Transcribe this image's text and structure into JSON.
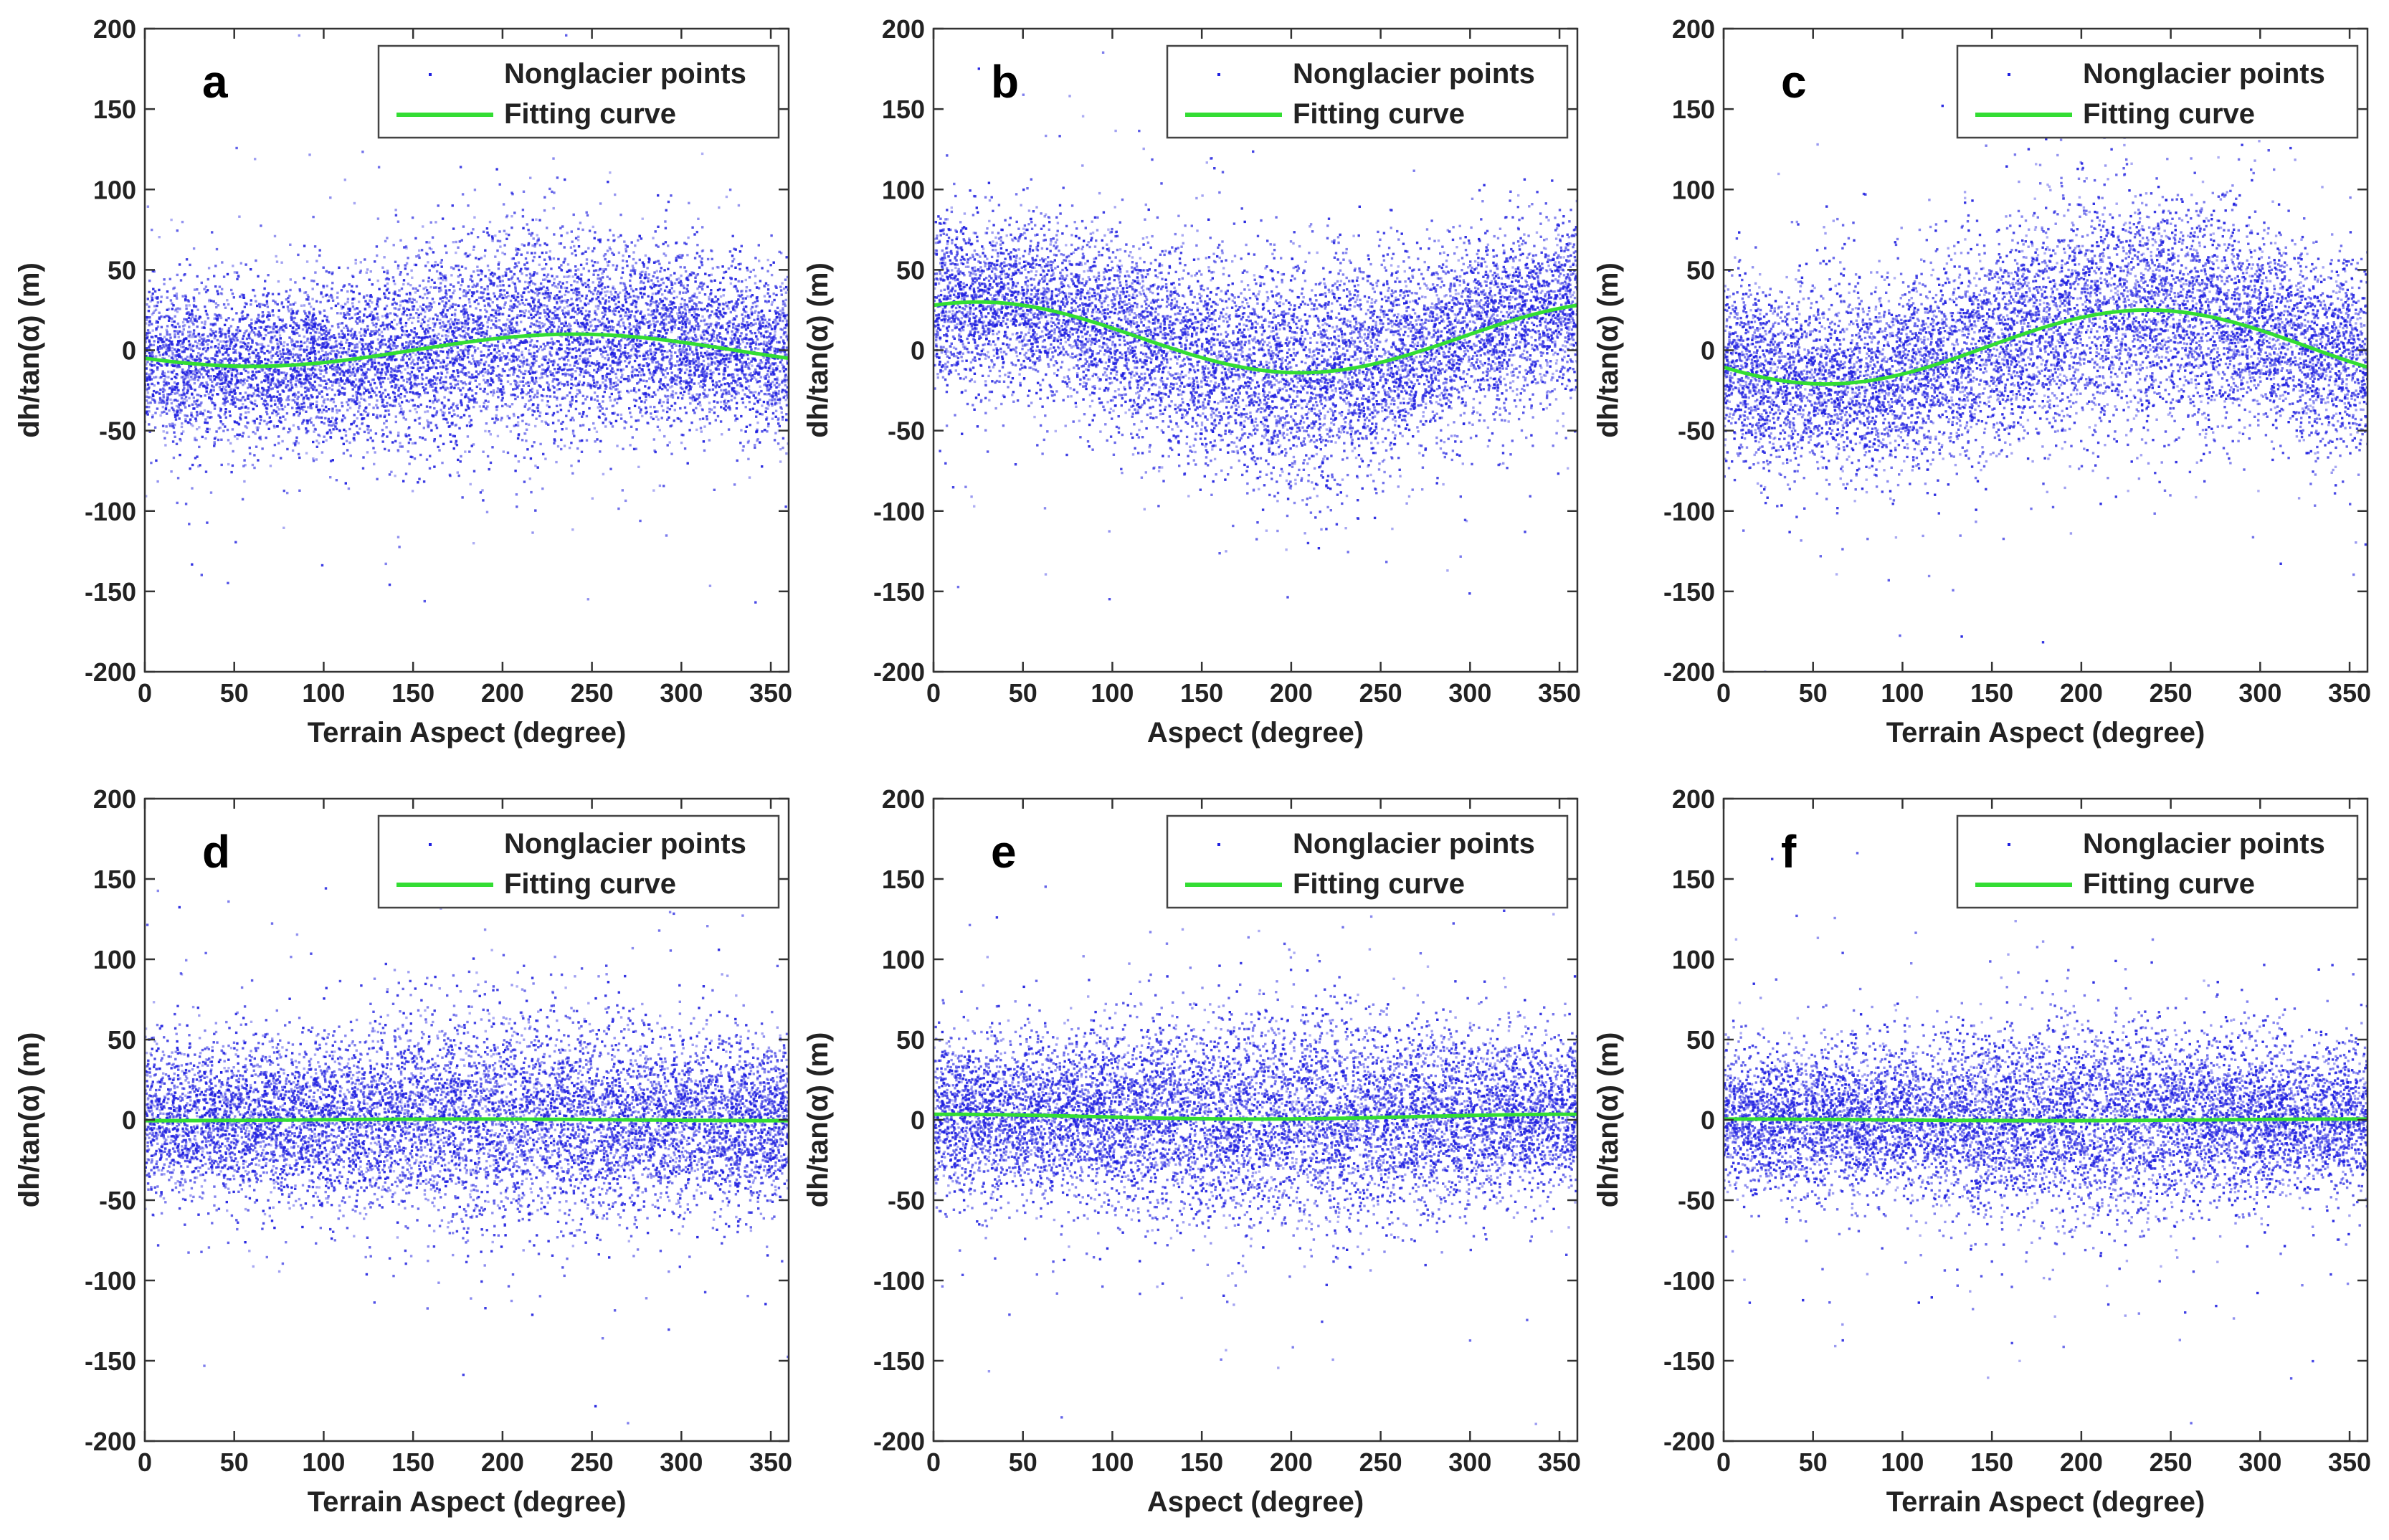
{
  "chart_data": [
    {
      "type": "scatter",
      "panel_label": "a",
      "xlabel": "Terrain Aspect  (degree)",
      "ylabel": "dh/tan(α)  (m)",
      "xlim": [
        0,
        360
      ],
      "ylim": [
        -200,
        200
      ],
      "xticks": [
        0,
        50,
        100,
        150,
        200,
        250,
        300,
        350
      ],
      "yticks": [
        200,
        150,
        100,
        50,
        0,
        -50,
        -100,
        -150,
        -200
      ],
      "legend": {
        "position": "top-right",
        "entries": [
          "Nonglacier points",
          "Fitting curve"
        ]
      },
      "series": [
        {
          "name": "Nonglacier points",
          "kind": "points",
          "color": "#2020e0",
          "n_points": 9000,
          "distribution": {
            "center_x": 210,
            "spread_x": 60,
            "base_sd": 24,
            "core_sd_extra": 10
          }
        },
        {
          "name": "Fitting curve",
          "kind": "line",
          "color": "#33dd33",
          "model": "a*cos(b-x)+c",
          "params": {
            "a": 10,
            "b": 240,
            "c": 0
          }
        }
      ]
    },
    {
      "type": "scatter",
      "panel_label": "b",
      "xlabel": "Aspect  (degree)",
      "ylabel": "dh/tan(α)  (m)",
      "xlim": [
        0,
        360
      ],
      "ylim": [
        -200,
        200
      ],
      "xticks": [
        0,
        50,
        100,
        150,
        200,
        250,
        300,
        350
      ],
      "yticks": [
        200,
        150,
        100,
        50,
        0,
        -50,
        -100,
        -150,
        -200
      ],
      "legend": {
        "position": "top-right",
        "entries": [
          "Nonglacier points",
          "Fitting curve"
        ]
      },
      "series": [
        {
          "name": "Nonglacier points",
          "kind": "points",
          "color": "#2020e0",
          "n_points": 9000,
          "distribution": {
            "center_x": 200,
            "spread_x": 60,
            "base_sd": 26,
            "core_sd_extra": 10
          }
        },
        {
          "name": "Fitting curve",
          "kind": "line",
          "color": "#33dd33",
          "model": "a*cos(b-x)+c",
          "params": {
            "a": 22,
            "b": 25,
            "c": 8
          }
        }
      ]
    },
    {
      "type": "scatter",
      "panel_label": "c",
      "xlabel": "Terrain Aspect  (degree)",
      "ylabel": "dh/tan(α)  (m)",
      "xlim": [
        0,
        360
      ],
      "ylim": [
        -200,
        200
      ],
      "xticks": [
        0,
        50,
        100,
        150,
        200,
        250,
        300,
        350
      ],
      "yticks": [
        200,
        150,
        100,
        50,
        0,
        -50,
        -100,
        -150,
        -200
      ],
      "legend": {
        "position": "top-right",
        "entries": [
          "Nonglacier points",
          "Fitting curve"
        ]
      },
      "series": [
        {
          "name": "Nonglacier points",
          "kind": "points",
          "color": "#2020e0",
          "n_points": 9000,
          "distribution": {
            "center_x": 215,
            "spread_x": 60,
            "base_sd": 28,
            "core_sd_extra": 10
          }
        },
        {
          "name": "Fitting curve",
          "kind": "line",
          "color": "#33dd33",
          "model": "a*cos(b-x)+c",
          "params": {
            "a": 23,
            "b": 237,
            "c": 2
          }
        }
      ]
    },
    {
      "type": "scatter",
      "panel_label": "d",
      "xlabel": "Terrain Aspect  (degree)",
      "ylabel": "dh/tan(α)  (m)",
      "xlim": [
        0,
        360
      ],
      "ylim": [
        -200,
        200
      ],
      "xticks": [
        0,
        50,
        100,
        150,
        200,
        250,
        300,
        350
      ],
      "yticks": [
        200,
        150,
        100,
        50,
        0,
        -50,
        -100,
        -150,
        -200
      ],
      "legend": {
        "position": "top-right",
        "entries": [
          "Nonglacier points",
          "Fitting curve"
        ]
      },
      "series": [
        {
          "name": "Nonglacier points",
          "kind": "points",
          "color": "#2020e0",
          "n_points": 9000,
          "distribution": {
            "center_x": 200,
            "spread_x": 60,
            "base_sd": 24,
            "core_sd_extra": 10
          }
        },
        {
          "name": "Fitting curve",
          "kind": "line",
          "color": "#33dd33",
          "model": "a*cos(b-x)+c",
          "params": {
            "a": 0.5,
            "b": 180,
            "c": 0
          }
        }
      ]
    },
    {
      "type": "scatter",
      "panel_label": "e",
      "xlabel": "Aspect  (degree)",
      "ylabel": "dh/tan(α)  (m)",
      "xlim": [
        0,
        360
      ],
      "ylim": [
        -200,
        200
      ],
      "xticks": [
        0,
        50,
        100,
        150,
        200,
        250,
        300,
        350
      ],
      "yticks": [
        200,
        150,
        100,
        50,
        0,
        -50,
        -100,
        -150,
        -200
      ],
      "legend": {
        "position": "top-right",
        "entries": [
          "Nonglacier points",
          "Fitting curve"
        ]
      },
      "series": [
        {
          "name": "Nonglacier points",
          "kind": "points",
          "color": "#2020e0",
          "n_points": 9000,
          "distribution": {
            "center_x": 195,
            "spread_x": 60,
            "base_sd": 24,
            "core_sd_extra": 10
          }
        },
        {
          "name": "Fitting curve",
          "kind": "line",
          "color": "#33dd33",
          "model": "a*cos(b-x)+c",
          "params": {
            "a": 1.5,
            "b": 0,
            "c": 2
          }
        }
      ]
    },
    {
      "type": "scatter",
      "panel_label": "f",
      "xlabel": "Terrain Aspect  (degree)",
      "ylabel": "dh/tan(α)  (m)",
      "xlim": [
        0,
        360
      ],
      "ylim": [
        -200,
        200
      ],
      "xticks": [
        0,
        50,
        100,
        150,
        200,
        250,
        300,
        350
      ],
      "yticks": [
        200,
        150,
        100,
        50,
        0,
        -50,
        -100,
        -150,
        -200
      ],
      "legend": {
        "position": "top-right",
        "entries": [
          "Nonglacier points",
          "Fitting curve"
        ]
      },
      "series": [
        {
          "name": "Nonglacier points",
          "kind": "points",
          "color": "#2020e0",
          "n_points": 9000,
          "distribution": {
            "center_x": 200,
            "spread_x": 60,
            "base_sd": 22,
            "core_sd_extra": 8
          }
        },
        {
          "name": "Fitting curve",
          "kind": "line",
          "color": "#33dd33",
          "model": "a*cos(b-x)+c",
          "params": {
            "a": 0.5,
            "b": 0,
            "c": 0
          }
        }
      ]
    }
  ]
}
